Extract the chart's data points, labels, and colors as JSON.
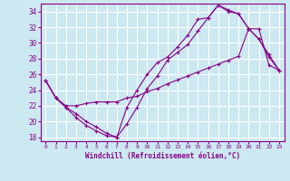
{
  "xlabel": "Windchill (Refroidissement éolien,°C)",
  "bg_color": "#cce8f0",
  "line_color": "#880088",
  "grid_color": "#ffffff",
  "xlim": [
    -0.5,
    23.5
  ],
  "ylim": [
    17.5,
    35.0
  ],
  "yticks": [
    18,
    20,
    22,
    24,
    26,
    28,
    30,
    32,
    34
  ],
  "xticks": [
    0,
    1,
    2,
    3,
    4,
    5,
    6,
    7,
    8,
    9,
    10,
    11,
    12,
    13,
    14,
    15,
    16,
    17,
    18,
    19,
    20,
    21,
    22,
    23
  ],
  "series": [
    {
      "x": [
        0,
        1,
        2,
        3,
        4,
        5,
        6,
        7,
        8,
        9,
        10,
        11,
        12,
        13,
        14,
        15,
        16,
        17,
        18,
        19,
        20,
        21,
        22,
        23
      ],
      "y": [
        25.2,
        23.0,
        21.8,
        21.0,
        20.0,
        19.3,
        18.5,
        18.0,
        19.7,
        21.8,
        24.2,
        25.8,
        27.8,
        28.8,
        29.8,
        31.5,
        33.2,
        34.8,
        34.0,
        33.7,
        31.8,
        30.5,
        28.2,
        26.5
      ]
    },
    {
      "x": [
        0,
        1,
        2,
        3,
        4,
        5,
        6,
        7,
        8,
        9,
        10,
        11,
        12,
        13,
        14,
        15,
        16,
        17,
        18,
        19,
        20,
        21,
        22,
        23
      ],
      "y": [
        25.2,
        23.0,
        22.0,
        22.0,
        22.3,
        22.5,
        22.5,
        22.5,
        23.0,
        23.2,
        23.8,
        24.2,
        24.8,
        25.3,
        25.8,
        26.3,
        26.8,
        27.3,
        27.8,
        28.3,
        31.8,
        31.8,
        27.2,
        26.5
      ]
    },
    {
      "x": [
        0,
        1,
        2,
        3,
        4,
        5,
        6,
        7,
        8,
        9,
        10,
        11,
        12,
        13,
        14,
        15,
        16,
        17,
        18,
        19,
        20,
        21,
        22,
        23
      ],
      "y": [
        25.2,
        23.0,
        21.8,
        20.5,
        19.5,
        18.8,
        18.2,
        18.0,
        21.8,
        24.0,
        26.0,
        27.5,
        28.2,
        29.5,
        31.0,
        33.0,
        33.2,
        34.8,
        34.2,
        33.7,
        31.8,
        30.5,
        28.5,
        26.5
      ]
    }
  ]
}
